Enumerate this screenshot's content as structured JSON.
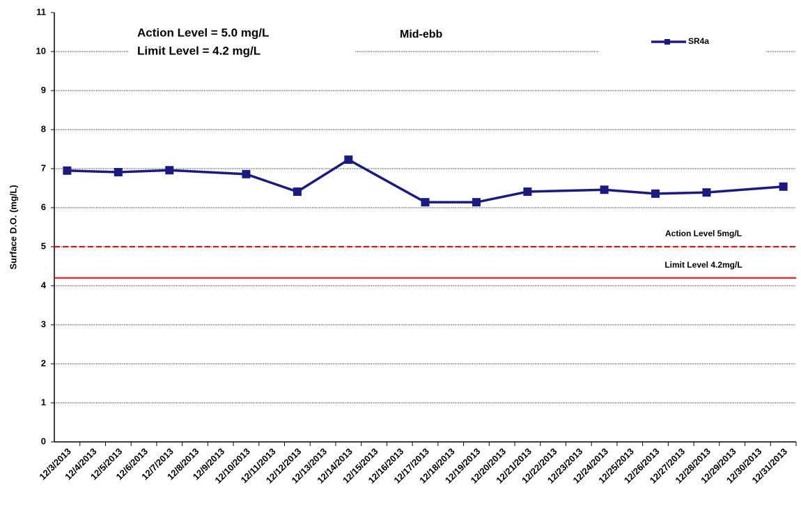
{
  "chart_data": {
    "type": "line",
    "title": "Mid-ebb",
    "annotations": [
      "Action Level = 5.0 mg/L",
      "Limit Level = 4.2 mg/L"
    ],
    "y_label": "Surface D.O. (mg/L)",
    "categories": [
      "12/3/2013",
      "12/4/2013",
      "12/5/2013",
      "12/6/2013",
      "12/7/2013",
      "12/8/2013",
      "12/9/2013",
      "12/10/2013",
      "12/11/2013",
      "12/12/2013",
      "12/13/2013",
      "12/14/2013",
      "12/15/2013",
      "12/16/2013",
      "12/17/2013",
      "12/18/2013",
      "12/19/2013",
      "12/20/2013",
      "12/21/2013",
      "12/22/2013",
      "12/23/2013",
      "12/24/2013",
      "12/25/2013",
      "12/26/2013",
      "12/27/2013",
      "12/28/2013",
      "12/29/2013",
      "12/30/2013",
      "12/31/2013"
    ],
    "series": [
      {
        "name": "SR4a",
        "color": "#1a1a80",
        "x": [
          "12/3/2013",
          "12/5/2013",
          "12/7/2013",
          "12/10/2013",
          "12/12/2013",
          "12/14/2013",
          "12/17/2013",
          "12/19/2013",
          "12/21/2013",
          "12/24/2013",
          "12/26/2013",
          "12/28/2013",
          "12/31/2013"
        ],
        "values": [
          6.95,
          6.91,
          6.96,
          6.86,
          6.41,
          7.23,
          6.14,
          6.14,
          6.41,
          6.46,
          6.36,
          6.39,
          6.54
        ]
      }
    ],
    "reference_lines": [
      {
        "value": 5,
        "label": "Action Level 5mg/L",
        "color": "#ff0000",
        "style": "dashed"
      },
      {
        "value": 4.2,
        "label": "Limit Level 4.2mg/L",
        "color": "#ff0000",
        "style": "solid"
      }
    ],
    "ylim": [
      0,
      11
    ],
    "yticks": [
      0,
      1,
      2,
      3,
      4,
      5,
      6,
      7,
      8,
      9,
      10,
      11
    ],
    "grid": true,
    "legend": "top-right"
  }
}
